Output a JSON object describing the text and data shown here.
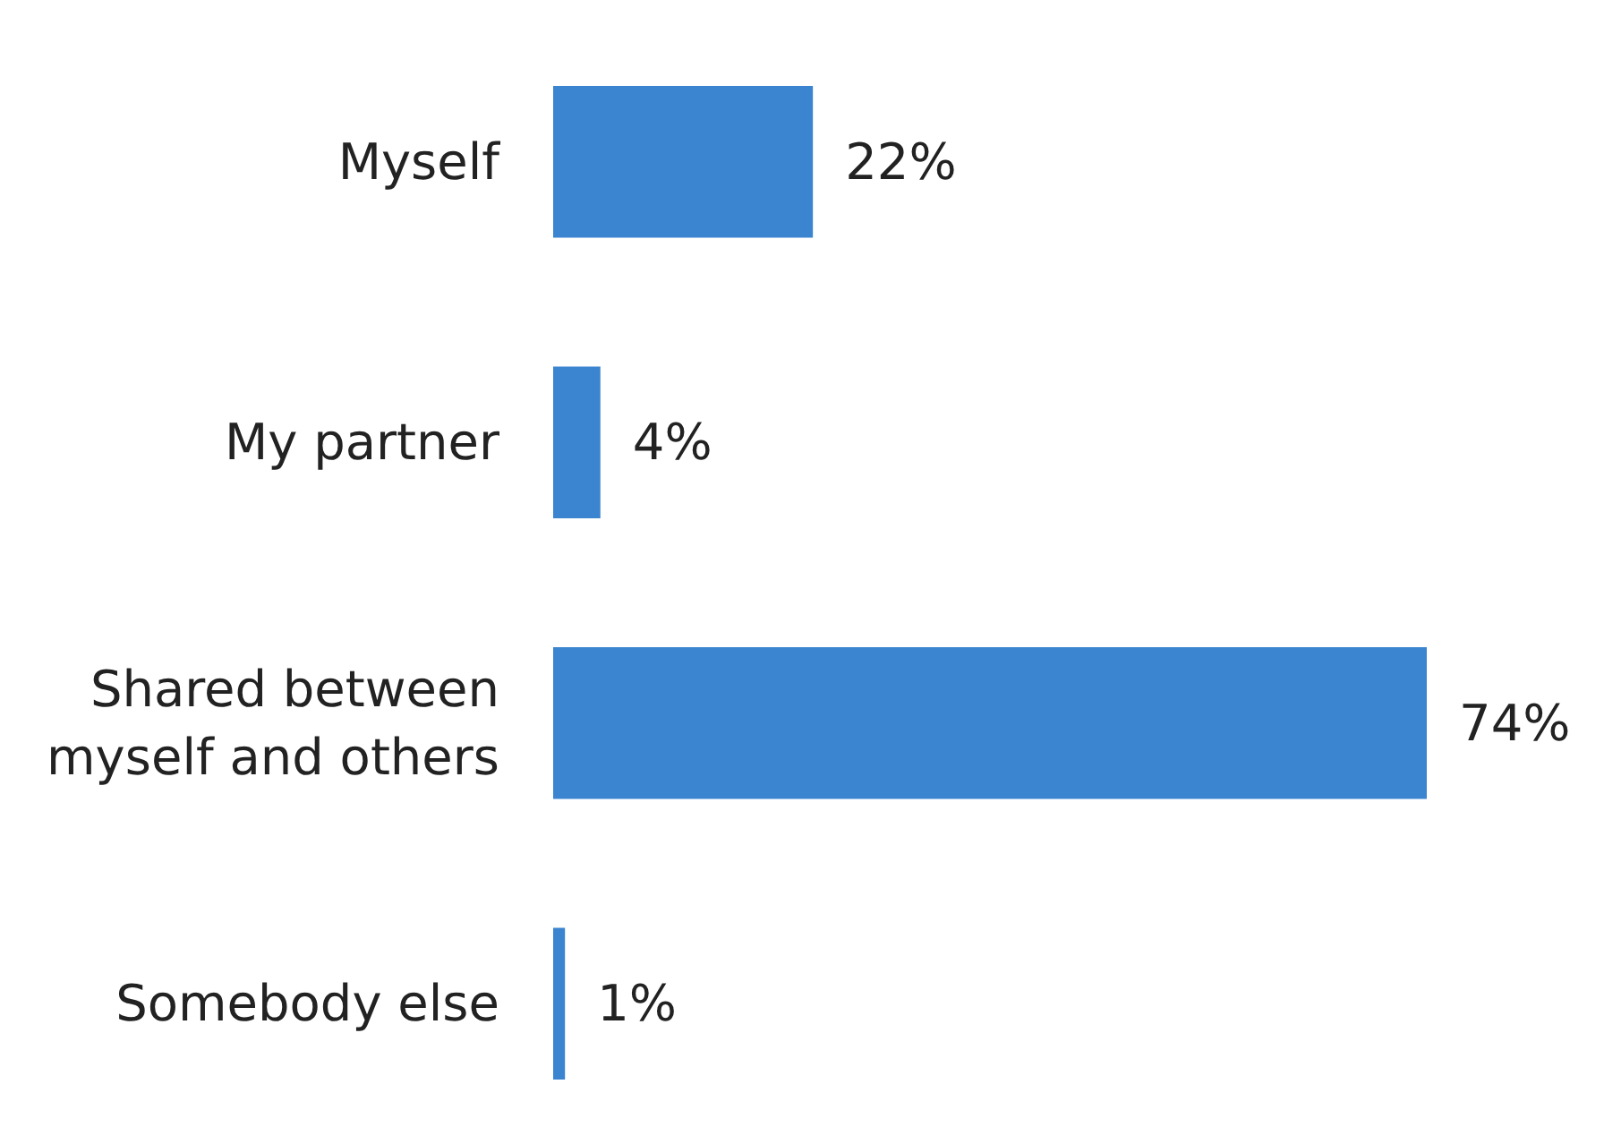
{
  "chart_data": {
    "type": "bar",
    "orientation": "horizontal",
    "categories": [
      "Myself",
      "My partner",
      "Shared between\nmyself and others",
      "Somebody else"
    ],
    "values": [
      22,
      4,
      74,
      1
    ],
    "value_labels": [
      "22%",
      "4%",
      "74%",
      "1%"
    ],
    "color": "#3a84d0"
  }
}
